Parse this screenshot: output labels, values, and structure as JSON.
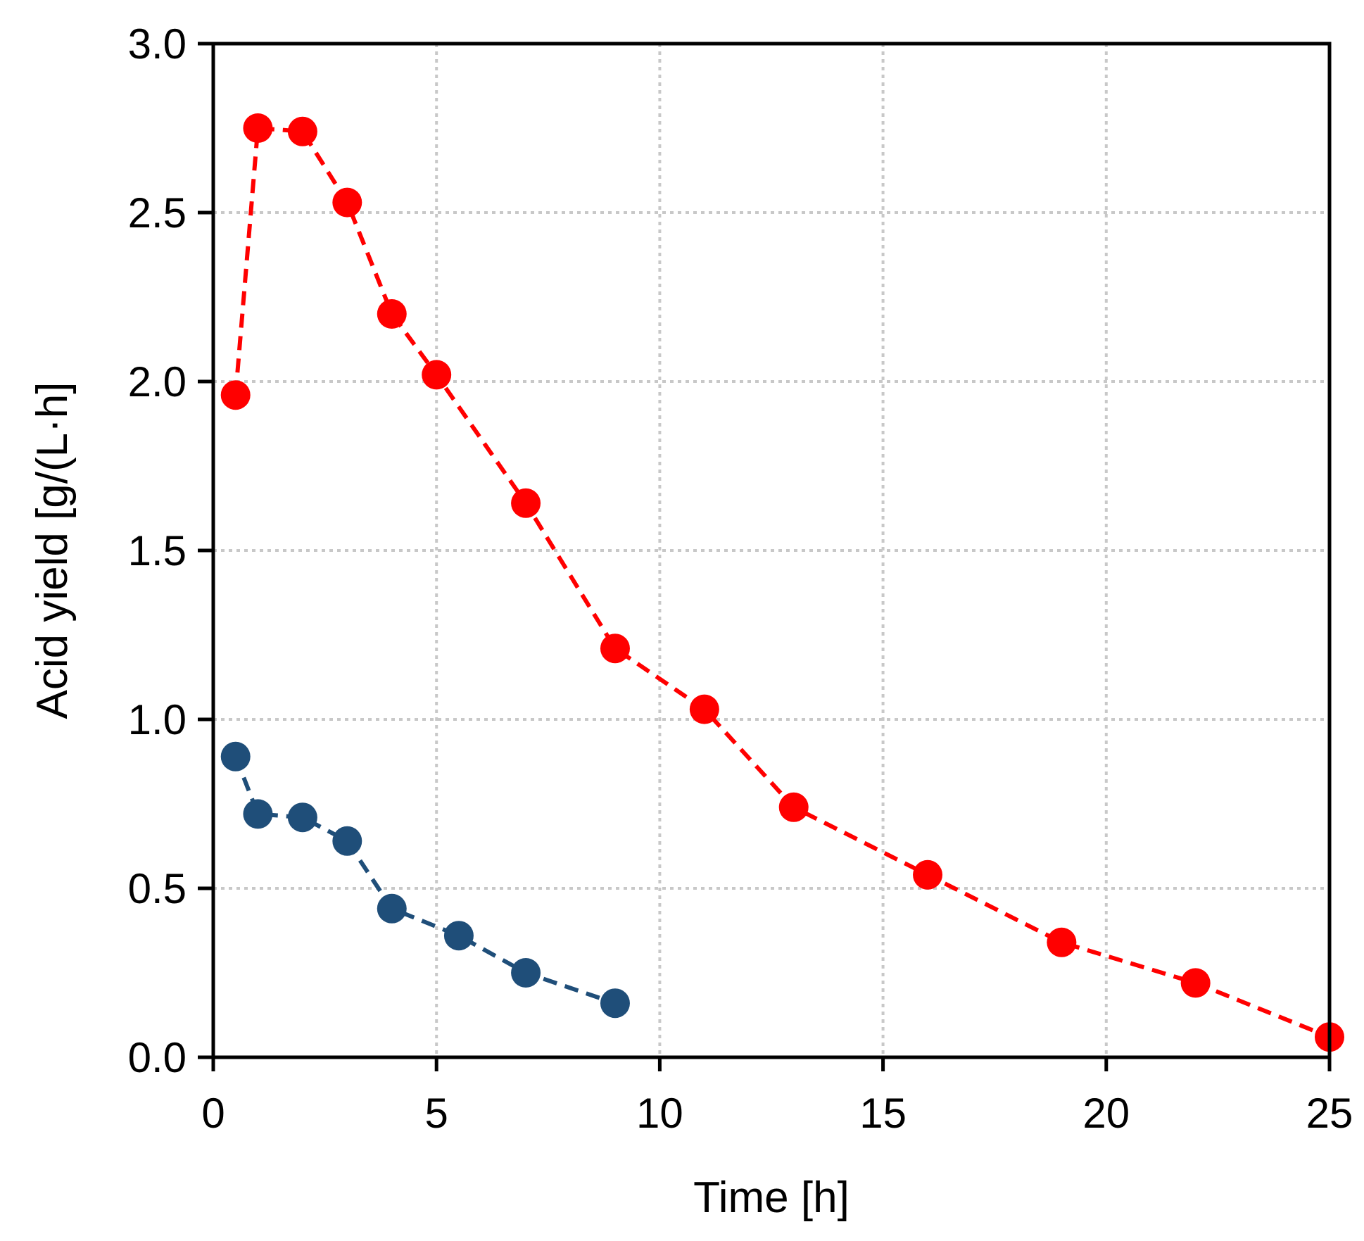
{
  "chart_data": {
    "type": "line",
    "title": "",
    "xlabel": "Time [h]",
    "ylabel": "Acid yield [g/(L·h]",
    "xlim": [
      0,
      25
    ],
    "ylim": [
      0,
      3.0
    ],
    "xticks": [
      0,
      5,
      10,
      15,
      20,
      25
    ],
    "xtick_labels": [
      "0",
      "5",
      "10",
      "15",
      "20",
      "25"
    ],
    "yticks": [
      0,
      0.5,
      1.0,
      1.5,
      2.0,
      2.5,
      3.0
    ],
    "ytick_labels": [
      "0.0",
      "0.5",
      "1.0",
      "1.5",
      "2.0",
      "2.5",
      "3.0"
    ],
    "grid": true,
    "legend": "none",
    "series": [
      {
        "name": "red series",
        "color": "#ff0000",
        "line_style": "dashed",
        "x": [
          0.5,
          1,
          2,
          3,
          4,
          5,
          7,
          9,
          11,
          13,
          16,
          19,
          22,
          25
        ],
        "y": [
          1.96,
          2.75,
          2.74,
          2.53,
          2.2,
          2.02,
          1.64,
          1.21,
          1.03,
          0.74,
          0.54,
          0.34,
          0.22,
          0.06
        ]
      },
      {
        "name": "blue series",
        "color": "#1f4e79",
        "line_style": "dashed",
        "x": [
          0.5,
          1,
          2,
          3,
          4,
          5.5,
          7,
          9
        ],
        "y": [
          0.89,
          0.72,
          0.71,
          0.64,
          0.44,
          0.36,
          0.25,
          0.16
        ]
      }
    ]
  }
}
